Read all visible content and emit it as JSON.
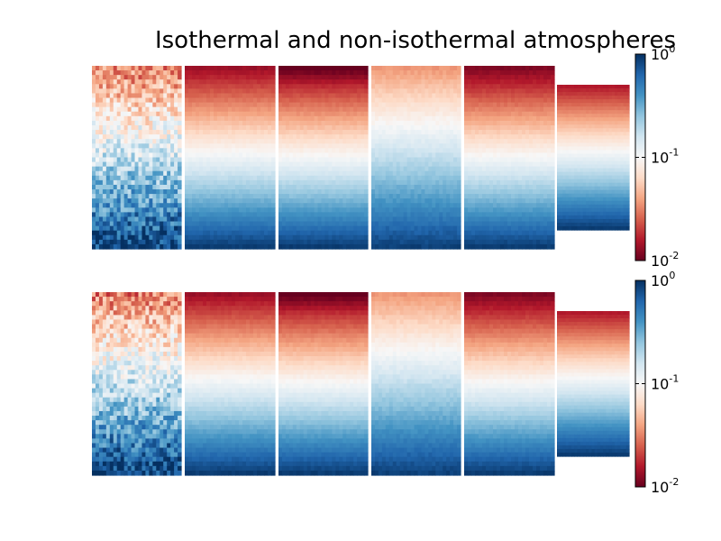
{
  "chart_data": {
    "type": "heatmap",
    "title": "Isothermal and non-isothermal atmospheres",
    "colormap": "RdBu (red = low, white = mid, blue = high)",
    "color_scale": "log",
    "colorbar_range": [
      0.01,
      1
    ],
    "colorbar_ticks": [
      {
        "value": 1,
        "base": "10",
        "exp": "0"
      },
      {
        "value": 0.1,
        "base": "10",
        "exp": "-1"
      },
      {
        "value": 0.01,
        "base": "10",
        "exp": "-2"
      }
    ],
    "rows": [
      {
        "panels": [
          {
            "top_value": 0.03,
            "bottom_value": 0.9,
            "noise": 0.25,
            "upper_mix": 0
          },
          {
            "top_value": 0.013,
            "bottom_value": 0.95,
            "noise": 0.02,
            "upper_mix": 0
          },
          {
            "top_value": 0.011,
            "bottom_value": 0.95,
            "noise": 0.02,
            "upper_mix": 0.35
          },
          {
            "top_value": 0.035,
            "bottom_value": 0.9,
            "noise": 0.03,
            "upper_mix": 0
          },
          {
            "top_value": 0.011,
            "bottom_value": 0.95,
            "noise": 0.02,
            "upper_mix": 0
          },
          {
            "top_value": 0.015,
            "bottom_value": 0.95,
            "noise": 0.01,
            "upper_mix": 0
          }
        ]
      },
      {
        "panels": [
          {
            "top_value": 0.03,
            "bottom_value": 0.9,
            "noise": 0.25,
            "upper_mix": 0
          },
          {
            "top_value": 0.013,
            "bottom_value": 0.95,
            "noise": 0.02,
            "upper_mix": 0
          },
          {
            "top_value": 0.011,
            "bottom_value": 0.95,
            "noise": 0.02,
            "upper_mix": 0.35
          },
          {
            "top_value": 0.035,
            "bottom_value": 0.9,
            "noise": 0.03,
            "upper_mix": 0
          },
          {
            "top_value": 0.011,
            "bottom_value": 0.95,
            "noise": 0.02,
            "upper_mix": 0
          },
          {
            "top_value": 0.015,
            "bottom_value": 0.95,
            "noise": 0.01,
            "upper_mix": 0
          }
        ]
      }
    ]
  }
}
